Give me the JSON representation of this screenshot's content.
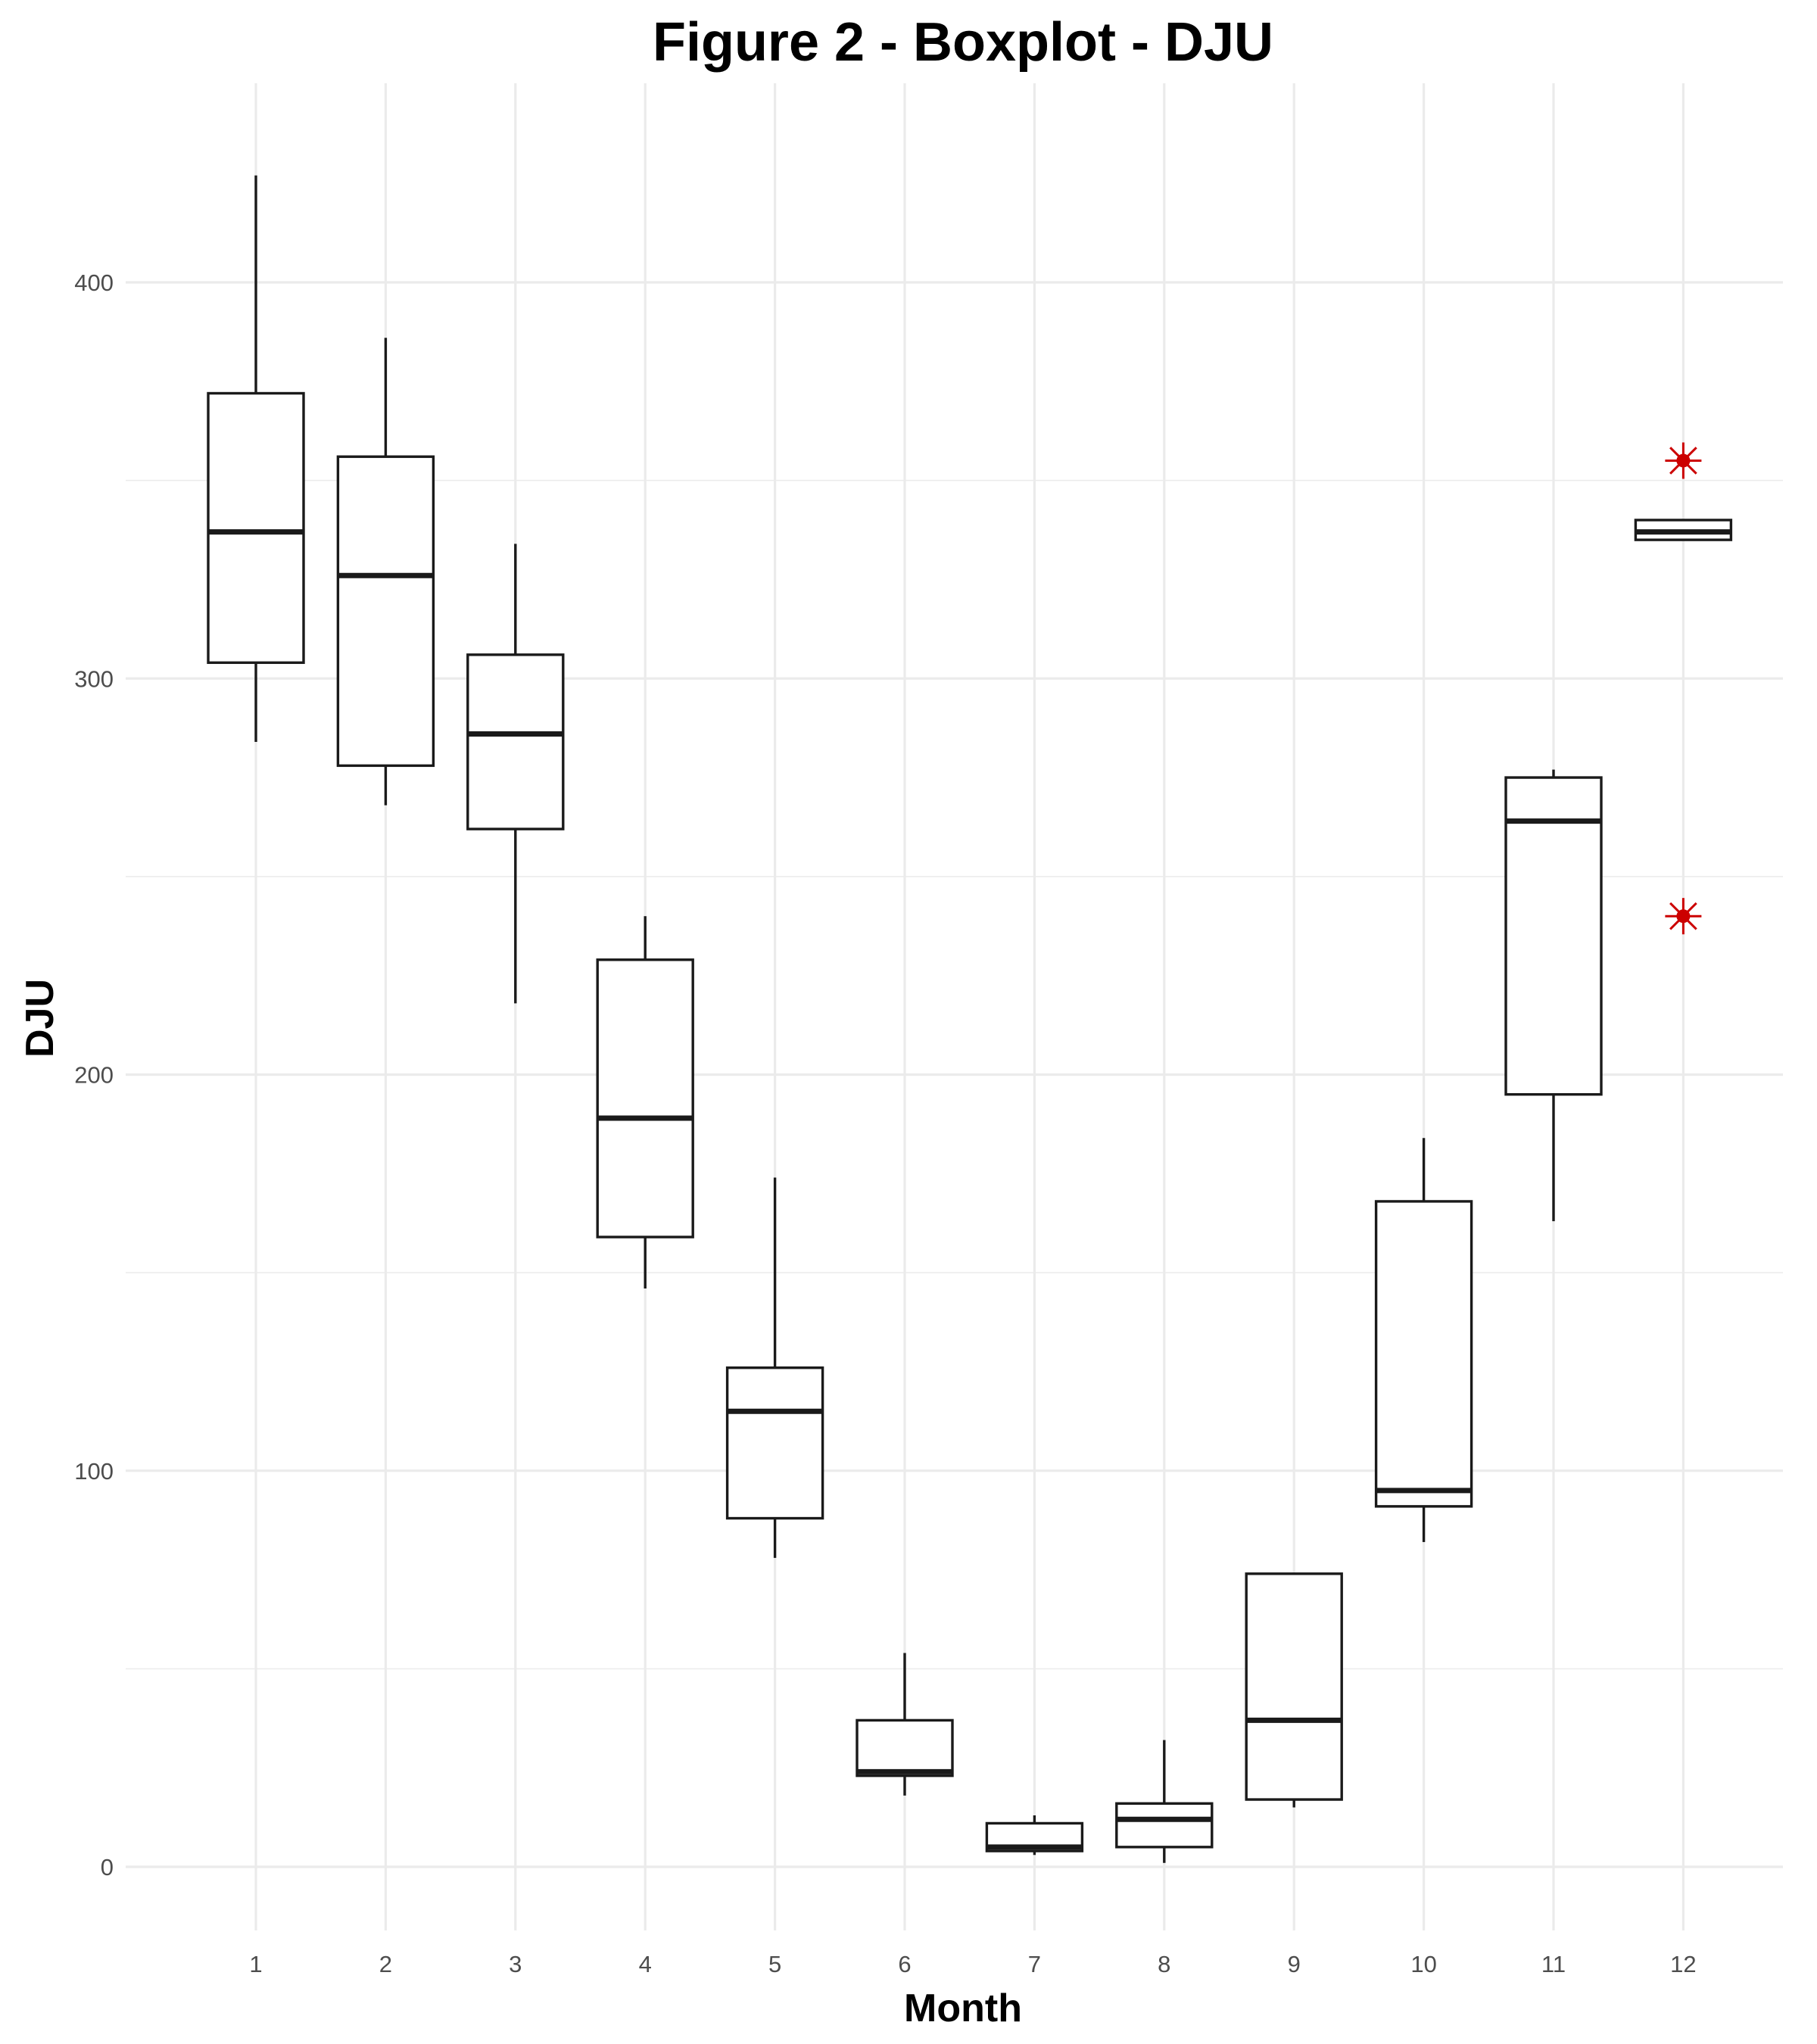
{
  "chart_data": {
    "type": "boxplot",
    "title": "Figure 2 - Boxplot - DJU",
    "xlabel": "Month",
    "ylabel": "DJU",
    "categories": [
      "1",
      "2",
      "3",
      "4",
      "5",
      "6",
      "7",
      "8",
      "9",
      "10",
      "11",
      "12"
    ],
    "ylim": [
      -20,
      445
    ],
    "yticks": [
      0,
      100,
      200,
      300,
      400
    ],
    "grid": true,
    "legend": "none",
    "boxes": [
      {
        "month": "1",
        "whisker_low": 284,
        "q1": 304,
        "median": 337,
        "q3": 372,
        "whisker_high": 427
      },
      {
        "month": "2",
        "whisker_low": 268,
        "q1": 278,
        "median": 326,
        "q3": 356,
        "whisker_high": 386
      },
      {
        "month": "3",
        "whisker_low": 218,
        "q1": 262,
        "median": 286,
        "q3": 306,
        "whisker_high": 334
      },
      {
        "month": "4",
        "whisker_low": 146,
        "q1": 159,
        "median": 189,
        "q3": 229,
        "whisker_high": 240
      },
      {
        "month": "5",
        "whisker_low": 78,
        "q1": 88,
        "median": 115,
        "q3": 126,
        "whisker_high": 174
      },
      {
        "month": "6",
        "whisker_low": 18,
        "q1": 23,
        "median": 24,
        "q3": 37,
        "whisker_high": 54
      },
      {
        "month": "7",
        "whisker_low": 3,
        "q1": 4,
        "median": 5,
        "q3": 11,
        "whisker_high": 13
      },
      {
        "month": "8",
        "whisker_low": 1,
        "q1": 5,
        "median": 12,
        "q3": 16,
        "whisker_high": 32
      },
      {
        "month": "9",
        "whisker_low": 15,
        "q1": 17,
        "median": 37,
        "q3": 74,
        "whisker_high": 74
      },
      {
        "month": "10",
        "whisker_low": 82,
        "q1": 91,
        "median": 95,
        "q3": 168,
        "whisker_high": 184
      },
      {
        "month": "11",
        "whisker_low": 163,
        "q1": 195,
        "median": 264,
        "q3": 275,
        "whisker_high": 277
      },
      {
        "month": "12",
        "whisker_low": 335,
        "q1": 335,
        "median": 337,
        "q3": 340,
        "whisker_high": 340
      }
    ],
    "outliers": [
      {
        "month": "12",
        "value": 355
      },
      {
        "month": "12",
        "value": 240
      }
    ],
    "colors": {
      "box_stroke": "#1a1a1a",
      "outlier": "#cc0000",
      "grid": "#ebebeb",
      "tick_text": "#4d4d4d"
    }
  }
}
